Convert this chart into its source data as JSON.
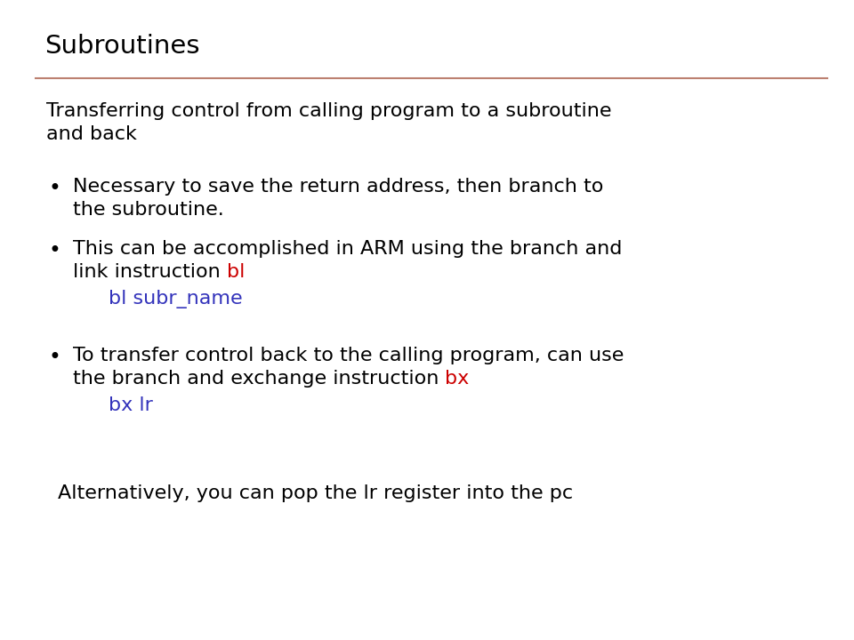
{
  "title": "Subroutines",
  "title_color": "#000000",
  "title_fontsize": 21,
  "separator_color": "#bc8070",
  "background_color": "#ffffff",
  "body_fontsize": 16,
  "intro_text_line1": "Transferring control from calling program to a subroutine",
  "intro_text_line2": "and back",
  "bullet1_line1": "Necessary to save the return address, then branch to",
  "bullet1_line2": "the subroutine.",
  "bullet2_line1": "This can be accomplished in ARM using the branch and",
  "bullet2_line2_black": "link instruction ",
  "bullet2_line2_red": "bl",
  "code1": "bl subr_name",
  "bullet3_line1": "To transfer control back to the calling program, can use",
  "bullet3_line2_black": "the branch and exchange instruction ",
  "bullet3_line2_red": "bx",
  "code2": "bx lr",
  "footer": "Alternatively, you can pop the lr register into the pc",
  "black": "#000000",
  "red": "#cc0000",
  "blue": "#3333bb",
  "font_family": "DejaVu Sans"
}
